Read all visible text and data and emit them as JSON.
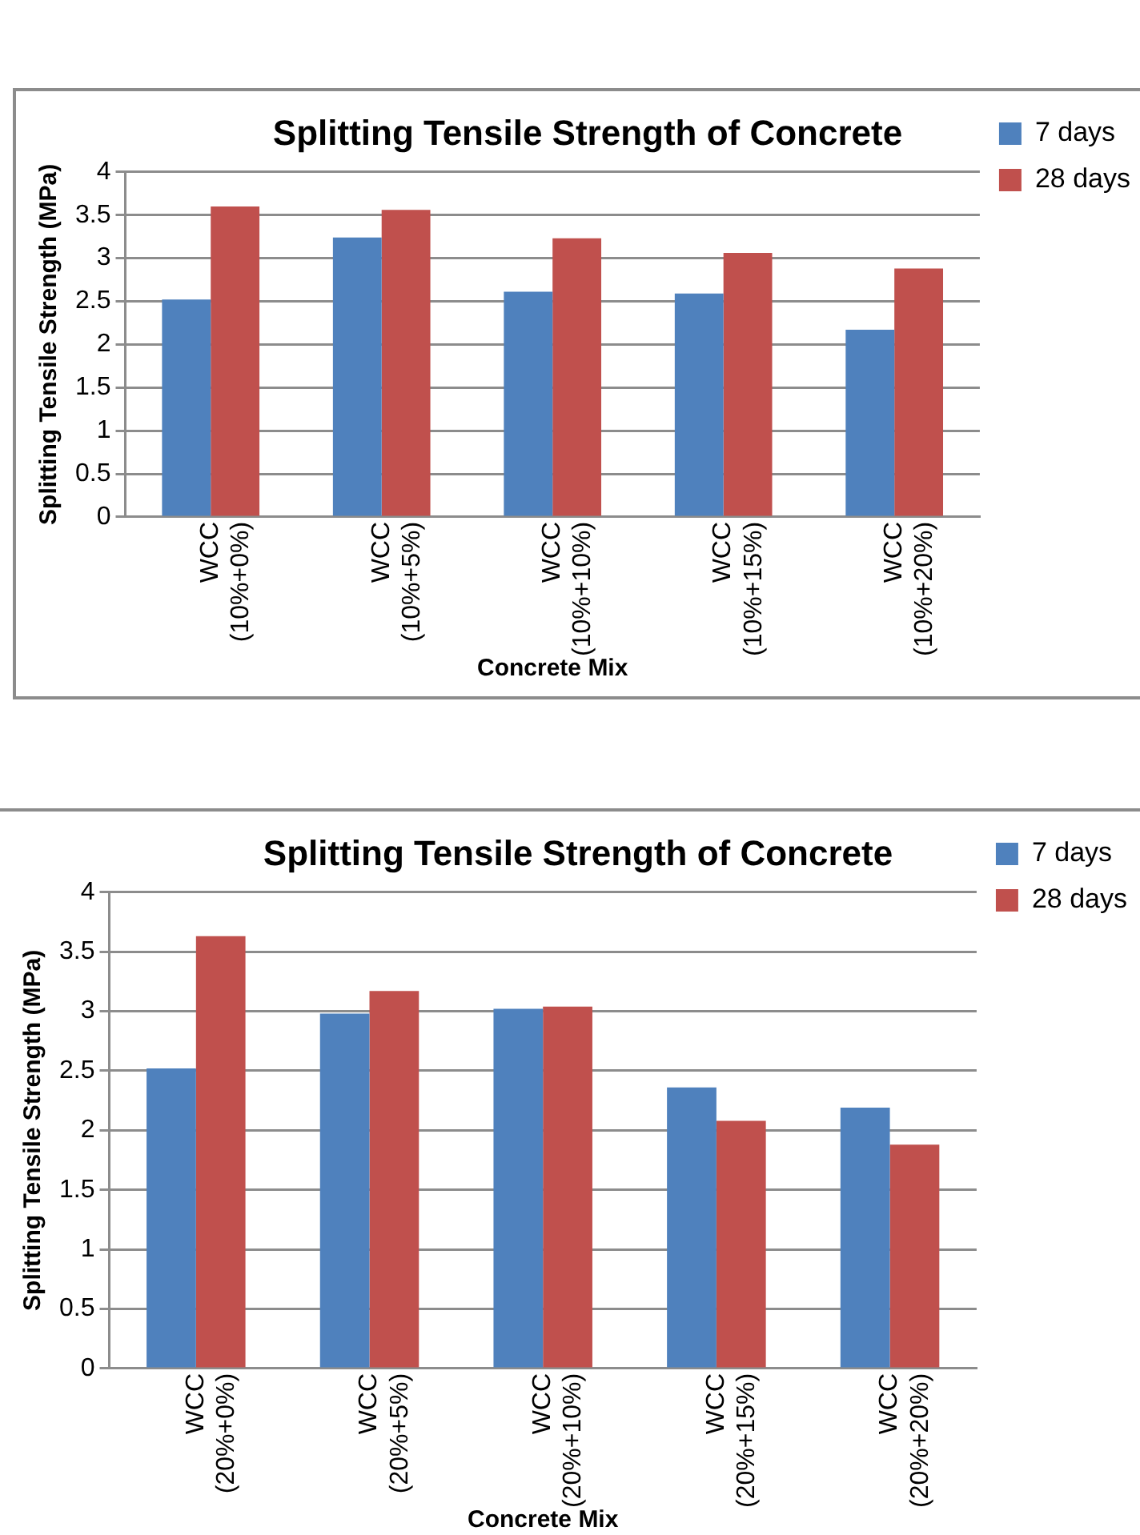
{
  "chart_data": [
    {
      "type": "bar",
      "title": "Splitting Tensile Strength of Concrete",
      "xlabel": "Concrete Mix",
      "ylabel": "Splitting Tensile Strength (MPa)",
      "categories": [
        "WCC (10%+0%)",
        "WCC (10%+5%)",
        "WCC (10%+10%)",
        "WCC (10%+15%)",
        "WCC (10%+20%)"
      ],
      "series": [
        {
          "name": "7 days",
          "color": "#4f81bd",
          "values": [
            2.52,
            3.24,
            2.61,
            2.59,
            2.17
          ]
        },
        {
          "name": "28 days",
          "color": "#c0504d",
          "values": [
            3.6,
            3.56,
            3.23,
            3.06,
            2.88
          ]
        }
      ],
      "ylim": [
        0,
        4
      ],
      "yticks": [
        0,
        0.5,
        1,
        1.5,
        2,
        2.5,
        3,
        3.5,
        4
      ],
      "grid": "y",
      "legend": "top right"
    },
    {
      "type": "bar",
      "title": "Splitting Tensile Strength of Concrete",
      "xlabel": "Concrete Mix",
      "ylabel": "Splitting Tensile Strength (MPa)",
      "categories": [
        "WCC (20%+0%)",
        "WCC (20%+5%)",
        "WCC (20%+10%)",
        "WCC (20%+15%)",
        "WCC (20%+20%)"
      ],
      "series": [
        {
          "name": "7 days",
          "color": "#4f81bd",
          "values": [
            2.52,
            2.98,
            3.02,
            2.36,
            2.19
          ]
        },
        {
          "name": "28 days",
          "color": "#c0504d",
          "values": [
            3.63,
            3.17,
            3.04,
            2.08,
            1.88
          ]
        }
      ],
      "ylim": [
        0,
        4
      ],
      "yticks": [
        0,
        0.5,
        1,
        1.5,
        2,
        2.5,
        3,
        3.5,
        4
      ],
      "grid": "y",
      "legend": "top right"
    }
  ]
}
